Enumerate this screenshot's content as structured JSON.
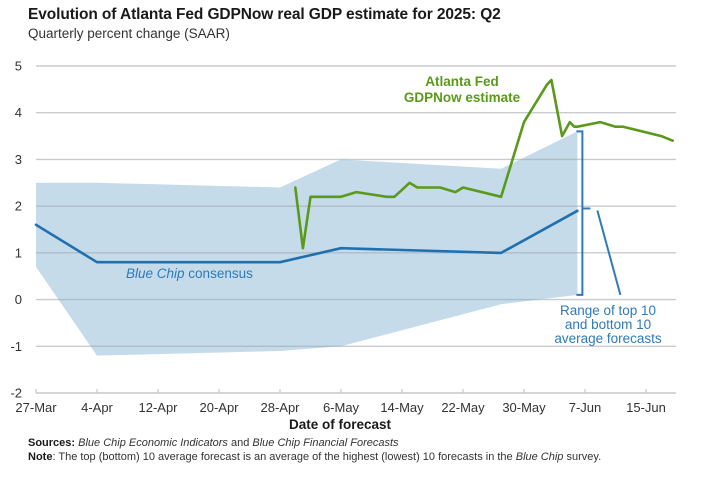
{
  "header": {
    "title": "Evolution of Atlanta Fed GDPNow real GDP estimate for 2025: Q2",
    "subtitle": "Quarterly percent change (SAAR)"
  },
  "chart_data": {
    "type": "line",
    "title": "Evolution of Atlanta Fed GDPNow real GDP estimate for 2025: Q2",
    "subtitle": "Quarterly percent change (SAAR)",
    "xlabel": "Date of forecast",
    "ylabel": "",
    "x_start_date": "27-Mar",
    "x_unit": "days since 27-Mar",
    "xlim": [
      0,
      84
    ],
    "ylim": [
      -2,
      5
    ],
    "grid": true,
    "y_ticks": [
      5,
      4,
      3,
      2,
      1,
      0,
      -1,
      -2
    ],
    "x_ticks": [
      {
        "day": 0,
        "label": "27-Mar"
      },
      {
        "day": 8,
        "label": "4-Apr"
      },
      {
        "day": 16,
        "label": "12-Apr"
      },
      {
        "day": 24,
        "label": "20-Apr"
      },
      {
        "day": 32,
        "label": "28-Apr"
      },
      {
        "day": 40,
        "label": "6-May"
      },
      {
        "day": 48,
        "label": "14-May"
      },
      {
        "day": 56,
        "label": "22-May"
      },
      {
        "day": 64,
        "label": "30-May"
      },
      {
        "day": 72,
        "label": "7-Jun"
      },
      {
        "day": 80,
        "label": "15-Jun"
      }
    ],
    "series": [
      {
        "name": "Atlanta Fed GDPNow estimate",
        "color": "#5a9a1a",
        "x": [
          34,
          35,
          36,
          40,
          42,
          46,
          47,
          49,
          50,
          53,
          55,
          56,
          61,
          64,
          67,
          67.6,
          69,
          70,
          70.6,
          71,
          74,
          76,
          77,
          82,
          83.5
        ],
        "y": [
          2.4,
          1.1,
          2.2,
          2.2,
          2.3,
          2.2,
          2.2,
          2.5,
          2.4,
          2.4,
          2.3,
          2.4,
          2.2,
          3.8,
          4.6,
          4.7,
          3.5,
          3.8,
          3.7,
          3.7,
          3.8,
          3.7,
          3.7,
          3.5,
          3.4
        ]
      },
      {
        "name": "Blue Chip consensus",
        "color": "#2070b0",
        "x": [
          0,
          8,
          32,
          40,
          61,
          71
        ],
        "y": [
          1.6,
          0.8,
          0.8,
          1.1,
          1.0,
          1.9
        ]
      }
    ],
    "band": {
      "name": "Range of top 10 and bottom 10 average forecasts",
      "color": "#c5dbea",
      "x": [
        0,
        8,
        32,
        40,
        61,
        71
      ],
      "upper": [
        2.5,
        2.5,
        2.4,
        3.0,
        2.8,
        3.6
      ],
      "lower": [
        0.7,
        -1.2,
        -1.1,
        -1.0,
        -0.1,
        0.1
      ]
    },
    "annotations": [
      {
        "text_lines": [
          "Atlanta Fed",
          "GDPNow estimate"
        ],
        "color": "#5a9a1a"
      },
      {
        "text_italic": "Blue Chip",
        "text_rest": " consensus",
        "color": "#2f7ab8"
      },
      {
        "text_lines": [
          "Range of top 10",
          "and bottom 10",
          "average forecasts"
        ],
        "color": "#2f7ab8"
      }
    ]
  },
  "footer": {
    "sources_label": "Sources:",
    "sources_italic_1": "Blue Chip Economic Indicators",
    "sources_and": " and ",
    "sources_italic_2": "Blue Chip Financial Forecasts",
    "note_label": "Note",
    "note_text_1": ": The top (bottom) 10 average forecast is an average of the highest (lowest) 10 forecasts in the ",
    "note_italic": "Blue Chip",
    "note_text_2": " survey."
  }
}
